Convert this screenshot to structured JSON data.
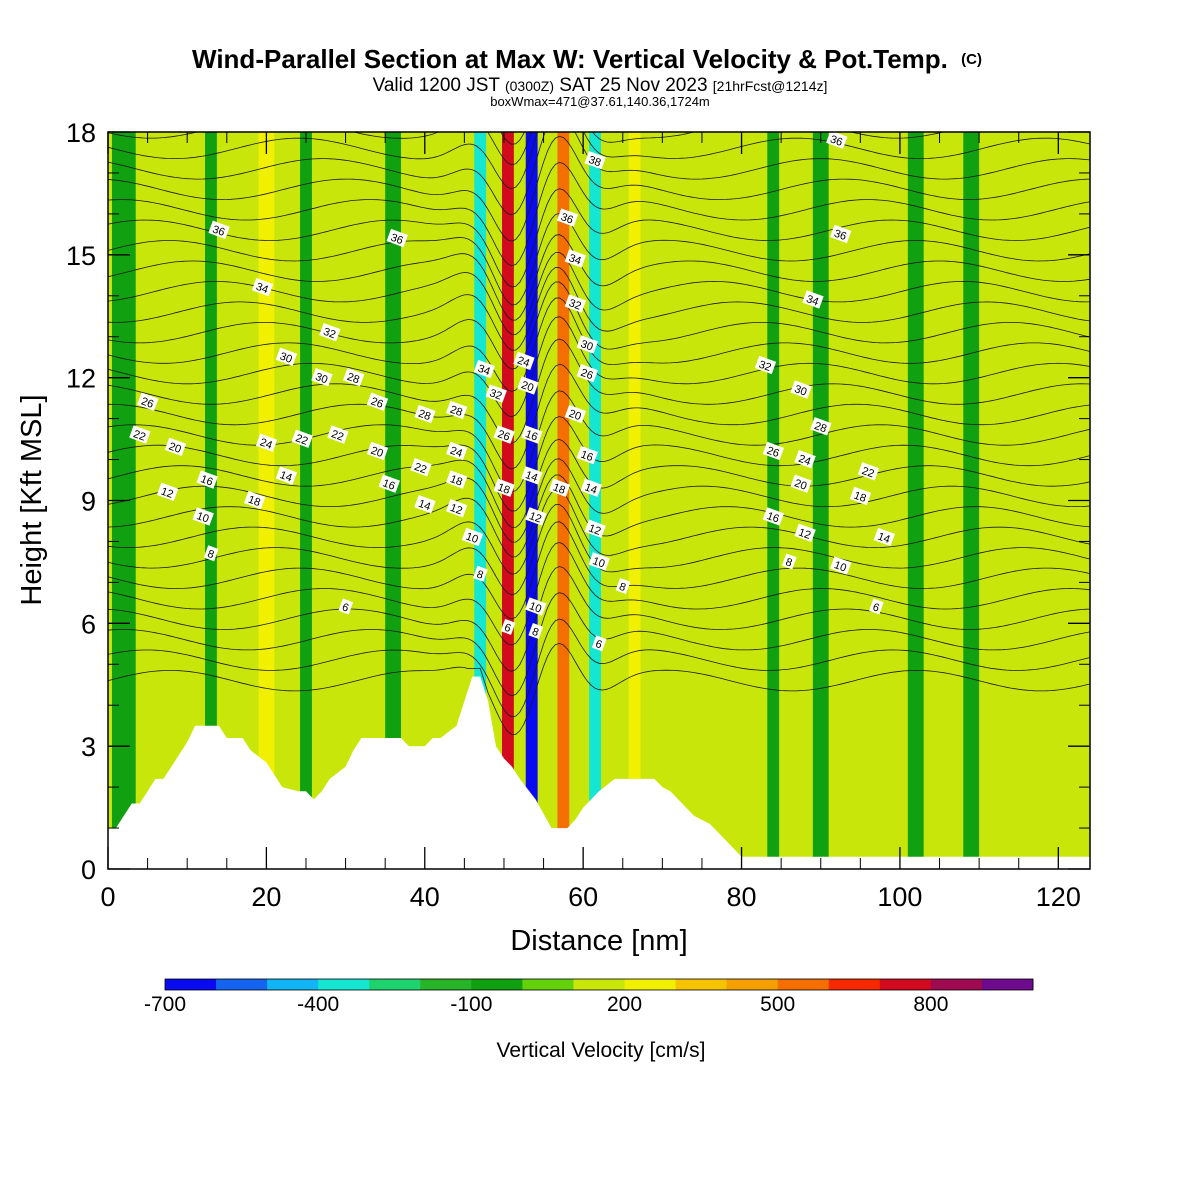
{
  "header": {
    "title": "Wind-Parallel Section at Max W: Vertical Velocity & Pot.Temp.",
    "title_mark": "(C)",
    "valid_pre": "Valid 1200 JST",
    "valid_utc": "(0300Z)",
    "valid_post": "SAT 25 Nov 2023",
    "valid_fcst": "[21hrFcst@1214z]",
    "boxw": "boxWmax=471@37.61,140.36,1724m"
  },
  "chart_data": {
    "type": "heatmap",
    "xlabel": "Distance [nm]",
    "ylabel": "Height [Kft MSL]",
    "xlim": [
      0,
      124
    ],
    "ylim": [
      0,
      18
    ],
    "x_ticks": [
      "0",
      "20",
      "40",
      "60",
      "80",
      "100",
      "120"
    ],
    "y_ticks": [
      "0",
      "3",
      "6",
      "9",
      "12",
      "15",
      "18"
    ],
    "x_tick_values": [
      0,
      20,
      40,
      60,
      80,
      100,
      120
    ],
    "y_tick_values": [
      0,
      3,
      6,
      9,
      12,
      15,
      18
    ],
    "background_field": "vertical velocity",
    "velocity_bands": [
      {
        "center": 2,
        "w": -100,
        "width": 3
      },
      {
        "center": 7,
        "w": 100,
        "width": 3
      },
      {
        "center": 13,
        "w": -100,
        "width": 1.5
      },
      {
        "center": 20,
        "w": 200,
        "width": 2
      },
      {
        "center": 25,
        "w": -100,
        "width": 1.5
      },
      {
        "center": 36,
        "w": -100,
        "width": 2
      },
      {
        "center": 47,
        "w": -400,
        "width": 1.5
      },
      {
        "center": 50.5,
        "w": 700,
        "width": 1.5
      },
      {
        "center": 53.5,
        "w": -700,
        "width": 1.5
      },
      {
        "center": 57.5,
        "w": 500,
        "width": 1.5
      },
      {
        "center": 61.5,
        "w": -400,
        "width": 1.5
      },
      {
        "center": 66.5,
        "w": 200,
        "width": 1.5
      },
      {
        "center": 84,
        "w": -100,
        "width": 1.5
      },
      {
        "center": 90,
        "w": -100,
        "width": 2
      },
      {
        "center": 102,
        "w": -100,
        "width": 2
      },
      {
        "center": 109,
        "w": -100,
        "width": 2
      },
      {
        "center": 115,
        "w": 100,
        "width": 3
      }
    ],
    "terrain": {
      "x": [
        0,
        1,
        2,
        3,
        4,
        5,
        6,
        7,
        8,
        9,
        10,
        11,
        11.5,
        14,
        15,
        17,
        18,
        20,
        21,
        22,
        24,
        25,
        26,
        27,
        28,
        30,
        31,
        32,
        33,
        35,
        37,
        38,
        40,
        41,
        42,
        44,
        45,
        46,
        47,
        48,
        49,
        50,
        51,
        52,
        54,
        56,
        57,
        58,
        59,
        60,
        61,
        62,
        64,
        65,
        66,
        67,
        69,
        70,
        71,
        72,
        73,
        74,
        75,
        76,
        77,
        78,
        79,
        80,
        80.5,
        124
      ],
      "y": [
        1.0,
        1.0,
        1.3,
        1.6,
        1.6,
        1.9,
        2.2,
        2.2,
        2.5,
        2.8,
        3.1,
        3.5,
        3.5,
        3.5,
        3.2,
        3.2,
        2.9,
        2.6,
        2.3,
        2.0,
        1.9,
        1.9,
        1.7,
        1.9,
        2.2,
        2.5,
        2.9,
        3.2,
        3.2,
        3.2,
        3.2,
        3.0,
        3.0,
        3.2,
        3.2,
        3.5,
        4.1,
        4.7,
        4.7,
        4.1,
        3.0,
        2.7,
        2.5,
        2.2,
        1.7,
        1.0,
        1.0,
        1.0,
        1.2,
        1.5,
        1.7,
        1.9,
        2.2,
        2.2,
        2.2,
        2.2,
        2.2,
        2.0,
        1.9,
        1.7,
        1.5,
        1.3,
        1.2,
        1.1,
        0.9,
        0.7,
        0.5,
        0.3,
        0.3,
        0.3
      ]
    },
    "contour_labels": [
      {
        "x": 14,
        "y": 15.6,
        "v": "36"
      },
      {
        "x": 36.5,
        "y": 15.4,
        "v": "36"
      },
      {
        "x": 58,
        "y": 15.9,
        "v": "36"
      },
      {
        "x": 92.5,
        "y": 15.5,
        "v": "36"
      },
      {
        "x": 92,
        "y": 17.8,
        "v": "36"
      },
      {
        "x": 61.5,
        "y": 17.3,
        "v": "38"
      },
      {
        "x": 19.5,
        "y": 14.2,
        "v": "34"
      },
      {
        "x": 59,
        "y": 14.9,
        "v": "34"
      },
      {
        "x": 89,
        "y": 13.9,
        "v": "34"
      },
      {
        "x": 47.5,
        "y": 12.2,
        "v": "34"
      },
      {
        "x": 28,
        "y": 13.1,
        "v": "32"
      },
      {
        "x": 59,
        "y": 13.8,
        "v": "32"
      },
      {
        "x": 83,
        "y": 12.3,
        "v": "32"
      },
      {
        "x": 49,
        "y": 11.6,
        "v": "32"
      },
      {
        "x": 22.5,
        "y": 12.5,
        "v": "30"
      },
      {
        "x": 27,
        "y": 12.0,
        "v": "30"
      },
      {
        "x": 60.5,
        "y": 12.8,
        "v": "30"
      },
      {
        "x": 87.5,
        "y": 11.7,
        "v": "30"
      },
      {
        "x": 31,
        "y": 12.0,
        "v": "28"
      },
      {
        "x": 40,
        "y": 11.1,
        "v": "28"
      },
      {
        "x": 44,
        "y": 11.2,
        "v": "28"
      },
      {
        "x": 90,
        "y": 10.8,
        "v": "28"
      },
      {
        "x": 5,
        "y": 11.4,
        "v": "26"
      },
      {
        "x": 34,
        "y": 11.4,
        "v": "26"
      },
      {
        "x": 60.5,
        "y": 12.1,
        "v": "26"
      },
      {
        "x": 84,
        "y": 10.2,
        "v": "26"
      },
      {
        "x": 50,
        "y": 10.6,
        "v": "26"
      },
      {
        "x": 52.5,
        "y": 12.4,
        "v": "24"
      },
      {
        "x": 20,
        "y": 10.4,
        "v": "24"
      },
      {
        "x": 44,
        "y": 10.2,
        "v": "24"
      },
      {
        "x": 88,
        "y": 10.0,
        "v": "24"
      },
      {
        "x": 4,
        "y": 10.6,
        "v": "22"
      },
      {
        "x": 24.5,
        "y": 10.5,
        "v": "22"
      },
      {
        "x": 39.5,
        "y": 9.8,
        "v": "22"
      },
      {
        "x": 96,
        "y": 9.7,
        "v": "22"
      },
      {
        "x": 29,
        "y": 10.6,
        "v": "22"
      },
      {
        "x": 8.5,
        "y": 10.3,
        "v": "20"
      },
      {
        "x": 34,
        "y": 10.2,
        "v": "20"
      },
      {
        "x": 53,
        "y": 11.8,
        "v": "20"
      },
      {
        "x": 59,
        "y": 11.1,
        "v": "20"
      },
      {
        "x": 87.5,
        "y": 9.4,
        "v": "20"
      },
      {
        "x": 18.5,
        "y": 9.0,
        "v": "18"
      },
      {
        "x": 44,
        "y": 9.5,
        "v": "18"
      },
      {
        "x": 50,
        "y": 9.3,
        "v": "18"
      },
      {
        "x": 57,
        "y": 9.3,
        "v": "18"
      },
      {
        "x": 95,
        "y": 9.1,
        "v": "18"
      },
      {
        "x": 12.5,
        "y": 9.5,
        "v": "16"
      },
      {
        "x": 35.5,
        "y": 9.4,
        "v": "16"
      },
      {
        "x": 53.5,
        "y": 10.6,
        "v": "16"
      },
      {
        "x": 60.5,
        "y": 10.1,
        "v": "16"
      },
      {
        "x": 84,
        "y": 8.6,
        "v": "16"
      },
      {
        "x": 22.5,
        "y": 9.6,
        "v": "14"
      },
      {
        "x": 40,
        "y": 8.9,
        "v": "14"
      },
      {
        "x": 53.5,
        "y": 9.6,
        "v": "14"
      },
      {
        "x": 61,
        "y": 9.3,
        "v": "14"
      },
      {
        "x": 98,
        "y": 8.1,
        "v": "14"
      },
      {
        "x": 7.5,
        "y": 9.2,
        "v": "12"
      },
      {
        "x": 44,
        "y": 8.8,
        "v": "12"
      },
      {
        "x": 54,
        "y": 8.6,
        "v": "12"
      },
      {
        "x": 61.5,
        "y": 8.3,
        "v": "12"
      },
      {
        "x": 88,
        "y": 8.2,
        "v": "12"
      },
      {
        "x": 12,
        "y": 8.6,
        "v": "10"
      },
      {
        "x": 46,
        "y": 8.1,
        "v": "10"
      },
      {
        "x": 62,
        "y": 7.5,
        "v": "10"
      },
      {
        "x": 92.5,
        "y": 7.4,
        "v": "10"
      },
      {
        "x": 54,
        "y": 6.4,
        "v": "10"
      },
      {
        "x": 13,
        "y": 7.7,
        "v": "8"
      },
      {
        "x": 47,
        "y": 7.2,
        "v": "8"
      },
      {
        "x": 65,
        "y": 6.9,
        "v": "8"
      },
      {
        "x": 86,
        "y": 7.5,
        "v": "8"
      },
      {
        "x": 54,
        "y": 5.8,
        "v": "8"
      },
      {
        "x": 30,
        "y": 6.4,
        "v": "6"
      },
      {
        "x": 50.5,
        "y": 5.9,
        "v": "6"
      },
      {
        "x": 62,
        "y": 5.5,
        "v": "6"
      },
      {
        "x": 97,
        "y": 6.4,
        "v": "6"
      }
    ],
    "colorbar": {
      "label": "Vertical Velocity [cm/s]",
      "levels": [
        -700,
        -600,
        -500,
        -400,
        -300,
        -200,
        -100,
        0,
        100,
        200,
        300,
        400,
        500,
        600,
        700,
        800,
        900
      ],
      "tick_labels": [
        {
          "value": -700,
          "text": "-700"
        },
        {
          "value": -400,
          "text": "-400"
        },
        {
          "value": -100,
          "text": "-100"
        },
        {
          "value": 200,
          "text": "200"
        },
        {
          "value": 500,
          "text": "500"
        },
        {
          "value": 800,
          "text": "800"
        }
      ],
      "colors": [
        "#0a0af0",
        "#1464f0",
        "#11b5f5",
        "#14e6d2",
        "#1ed26e",
        "#28b428",
        "#10a010",
        "#64d20a",
        "#c8e60a",
        "#f0f000",
        "#f5c300",
        "#f5a000",
        "#f56e00",
        "#f52800",
        "#d20a1e",
        "#a00a50",
        "#6e0a8c"
      ]
    }
  }
}
